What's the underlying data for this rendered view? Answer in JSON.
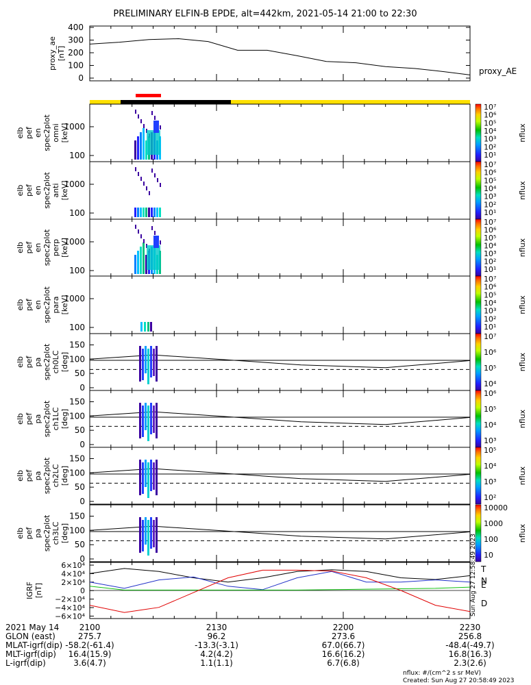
{
  "title": "PRELIMINARY ELFIN-B EPDE, alt=442km, 2021-05-14 21:00 to 22:30",
  "proxy": {
    "ylabel": [
      "proxy_ae",
      "[nT]"
    ],
    "legend": "proxy_AE",
    "yticks": [
      "400",
      "300",
      "200",
      "100",
      "0"
    ]
  },
  "spec_panels": [
    {
      "ylabel": [
        "elb",
        "pef",
        "en",
        "spec2plot",
        "omni",
        "[keV]"
      ],
      "yticks": [
        "1000",
        "100"
      ],
      "cb_ticks": [
        "10⁷",
        "10⁶",
        "10⁵",
        "10⁴",
        "10³",
        "10²",
        "10¹"
      ],
      "cb_title": "nflux"
    },
    {
      "ylabel": [
        "elb",
        "pef",
        "en",
        "spec2plot",
        "anti",
        "[keV]"
      ],
      "yticks": [
        "1000",
        "100"
      ],
      "cb_ticks": [
        "10⁷",
        "10⁶",
        "10⁵",
        "10⁴",
        "10³",
        "10²",
        "10¹"
      ],
      "cb_title": "nflux"
    },
    {
      "ylabel": [
        "elb",
        "pef",
        "en",
        "spec2plot",
        "perp",
        "[keV]"
      ],
      "yticks": [
        "1000",
        "100"
      ],
      "cb_ticks": [
        "10⁷",
        "10⁶",
        "10⁵",
        "10⁴",
        "10³",
        "10²",
        "10¹"
      ],
      "cb_title": "nflux"
    },
    {
      "ylabel": [
        "elb",
        "pef",
        "en",
        "spec2plot",
        "para",
        "[keV]"
      ],
      "yticks": [
        "1000",
        "100"
      ],
      "cb_ticks": [
        "10⁷",
        "10⁶",
        "10⁵",
        "10⁴",
        "10³",
        "10²",
        "10¹"
      ],
      "cb_title": "nflux"
    }
  ],
  "pa_panels": [
    {
      "ylabel": [
        "elb",
        "pef",
        "pa",
        "spec2plot",
        "ch0LC",
        "[deg]"
      ],
      "yticks": [
        "150",
        "100",
        "50",
        "0"
      ],
      "cb_ticks": [
        "10⁷",
        "10⁶",
        "10⁵",
        "10⁴"
      ],
      "cb_title": "nflux"
    },
    {
      "ylabel": [
        "elb",
        "pef",
        "pa",
        "spec2plot",
        "ch1LC",
        "[deg]"
      ],
      "yticks": [
        "150",
        "100",
        "50",
        "0"
      ],
      "cb_ticks": [
        "10⁶",
        "10⁵",
        "10⁴",
        "10³"
      ],
      "cb_title": "nflux"
    },
    {
      "ylabel": [
        "elb",
        "pef",
        "pa",
        "spec2plot",
        "ch2LC",
        "[deg]"
      ],
      "yticks": [
        "150",
        "100",
        "50",
        "0"
      ],
      "cb_ticks": [
        "10⁵",
        "10⁴",
        "10³",
        "10²"
      ],
      "cb_title": "nflux"
    },
    {
      "ylabel": [
        "elb",
        "pef",
        "pa",
        "spec2plot",
        "ch3LC",
        "[deg]"
      ],
      "yticks": [
        "150",
        "100",
        "50",
        "0"
      ],
      "cb_ticks": [
        "10000",
        "1000",
        "100",
        "10"
      ],
      "cb_title": "nflux"
    }
  ],
  "igrf": {
    "ylabel": [
      "IGRF",
      "[nT]"
    ],
    "yticks": [
      "6×10⁴",
      "4×10⁴",
      "2×10⁴",
      "0",
      "−2×10⁴",
      "−4×10⁴",
      "−6×10⁴"
    ],
    "legend": [
      "T",
      "N",
      "E",
      "D"
    ],
    "colors": [
      "#000000",
      "#2030c8",
      "#10c010",
      "#e00000"
    ],
    "side_text": "Sun Aug 27 12:58:49 2023"
  },
  "xaxis": {
    "rows": [
      {
        "label": "2021 May 14",
        "values": [
          "2100",
          "2130",
          "2200",
          "2230"
        ]
      },
      {
        "label": "GLON (east)",
        "values": [
          "275.7",
          "96.2",
          "273.6",
          "256.8"
        ]
      },
      {
        "label": "MLAT-igrf(dip)",
        "values": [
          "-58.2(-61.4)",
          "-13.3(-3.1)",
          "67.0(66.7)",
          "-48.4(-49.7)"
        ]
      },
      {
        "label": "MLT-igrf(dip)",
        "values": [
          "16.4(15.9)",
          "4.2(4.2)",
          "16.6(16.2)",
          "16.8(16.3)"
        ]
      },
      {
        "label": "L-igrf(dip)",
        "values": [
          "3.6(4.7)",
          "1.1(1.1)",
          "6.7(6.8)",
          "2.3(2.6)"
        ]
      }
    ]
  },
  "footer": {
    "units": "nflux: #/(cm^2 s sr MeV)",
    "created": "Created: Sun Aug 27 20:58:49 2023"
  },
  "chart_data": [
    {
      "type": "line",
      "title": "proxy_ae",
      "x_minutes": [
        0,
        7,
        14,
        21,
        28,
        35,
        42,
        49,
        56,
        63,
        70,
        77,
        84,
        90
      ],
      "values": [
        270,
        285,
        305,
        312,
        290,
        222,
        222,
        180,
        135,
        125,
        95,
        80,
        55,
        30
      ],
      "ylim": [
        0,
        400
      ]
    },
    {
      "type": "line",
      "title": "IGRF",
      "series": [
        {
          "name": "T",
          "values": [
            40000,
            52000,
            45000,
            30000,
            20000,
            30000,
            45000,
            49000,
            45000,
            30000,
            26000,
            35000
          ]
        },
        {
          "name": "N",
          "values": [
            20000,
            5000,
            25000,
            32000,
            10000,
            2000,
            30000,
            45000,
            20000,
            20000,
            25000,
            20000
          ]
        },
        {
          "name": "E",
          "values": [
            10000,
            1000,
            1000,
            1000,
            1000,
            1000,
            1000,
            2000,
            3000,
            4000,
            5000,
            8000
          ]
        },
        {
          "name": "D",
          "values": [
            -35000,
            -52000,
            -40000,
            -5000,
            30000,
            48000,
            48000,
            46000,
            30000,
            0,
            -35000,
            -50000
          ]
        }
      ],
      "ylim": [
        -60000,
        60000
      ]
    }
  ],
  "state_bar": {
    "colors": [
      "#ffe000",
      "#000000",
      "#ff0000"
    ]
  }
}
